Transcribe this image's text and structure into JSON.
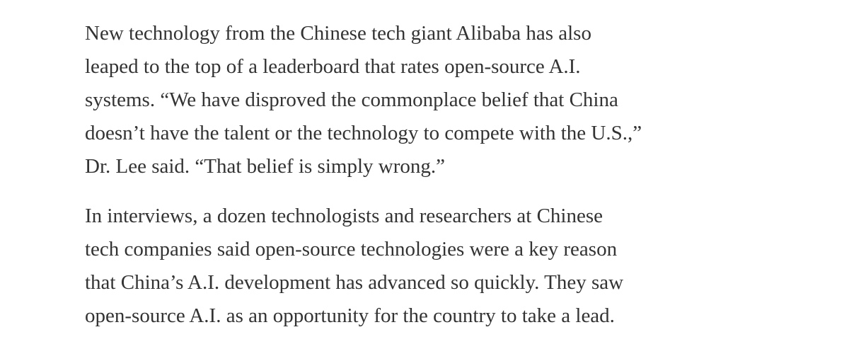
{
  "paragraphs": [
    {
      "lines": [
        "New technology from the Chinese tech giant Alibaba has also",
        "leaped to the top of a leaderboard that rates open-source A.I.",
        "systems. “We have disproved the commonplace belief that China",
        "doesn’t have the talent or the technology to compete with the U.S.,”",
        "Dr. Lee said. “That belief is simply wrong.”"
      ]
    },
    {
      "lines": [
        "In interviews, a dozen technologists and researchers at Chinese",
        "tech companies said open-source technologies were a key reason",
        "that China’s A.I. development has advanced so quickly. They saw",
        "open-source A.I. as an opportunity for the country to take a lead."
      ]
    }
  ]
}
